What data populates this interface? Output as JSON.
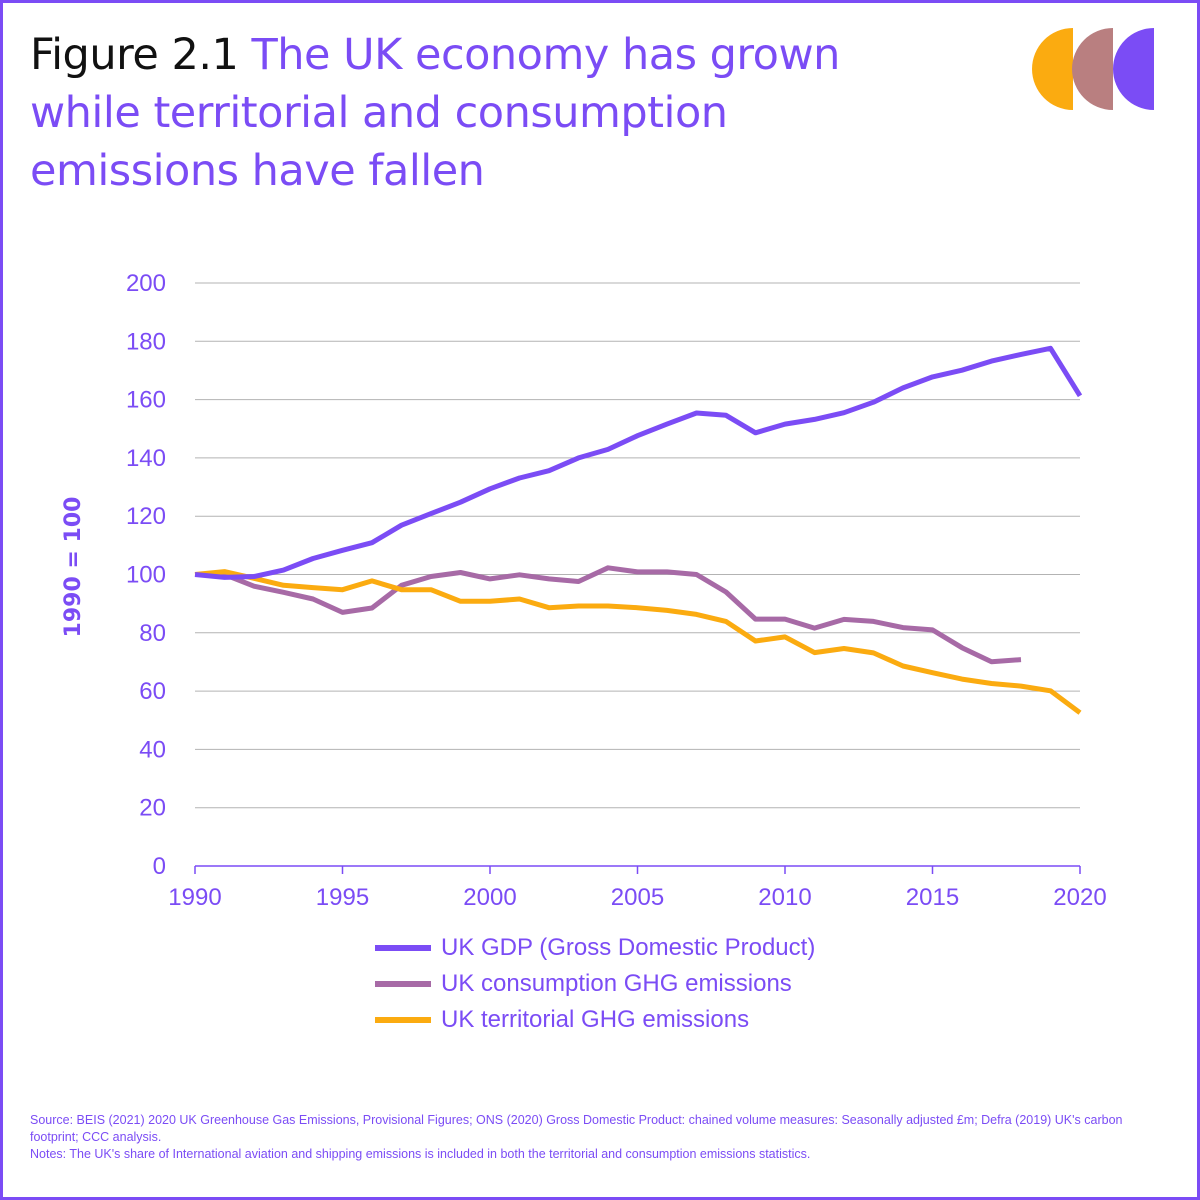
{
  "header": {
    "figure_label": "Figure 2.1",
    "title": "The UK economy has grown while territorial and consumption emissions have fallen"
  },
  "logo": {
    "colors": [
      "#fbab10",
      "#b97f80",
      "#7b4cf5"
    ]
  },
  "colors": {
    "accent": "#7b4cf5",
    "gdp": "#7b4cf5",
    "consumption": "#a76aa6",
    "territorial": "#fbab10",
    "grid": "#b3b3b3"
  },
  "chart_data": {
    "type": "line",
    "title": "The UK economy has grown while territorial and consumption emissions have fallen",
    "xlabel": "",
    "ylabel": "1990 = 100",
    "xlim": [
      1990,
      2020
    ],
    "ylim": [
      0,
      200
    ],
    "xticks": [
      1990,
      1995,
      2000,
      2005,
      2010,
      2015,
      2020
    ],
    "yticks": [
      0,
      20,
      40,
      60,
      80,
      100,
      120,
      140,
      160,
      180,
      200
    ],
    "grid": true,
    "legend_position": "bottom",
    "series": [
      {
        "name": "UK GDP (Gross Domestic Product)",
        "color": "#7b4cf5",
        "x": [
          1990,
          1991,
          1992,
          1993,
          1994,
          1995,
          1996,
          1997,
          1998,
          1999,
          2000,
          2001,
          2002,
          2003,
          2004,
          2005,
          2006,
          2007,
          2008,
          2009,
          2010,
          2011,
          2012,
          2013,
          2014,
          2015,
          2016,
          2017,
          2018,
          2019,
          2020
        ],
        "values": [
          100,
          99,
          99.3,
          101.5,
          105.5,
          108.3,
          110.9,
          116.9,
          120.9,
          124.8,
          129.4,
          133.1,
          135.6,
          140,
          142.9,
          147.6,
          151.6,
          155.4,
          154.6,
          148.6,
          151.6,
          153.2,
          155.5,
          159.1,
          164,
          167.8,
          170.1,
          173.2,
          175.5,
          177.6,
          161.3
        ]
      },
      {
        "name": "UK consumption GHG emissions",
        "color": "#a76aa6",
        "x": [
          1990,
          1991,
          1992,
          1993,
          1994,
          1995,
          1996,
          1997,
          1998,
          1999,
          2000,
          2001,
          2002,
          2003,
          2004,
          2005,
          2006,
          2007,
          2008,
          2009,
          2010,
          2011,
          2012,
          2013,
          2014,
          2015,
          2016,
          2017,
          2018
        ],
        "values": [
          100,
          100,
          96,
          93.9,
          91.6,
          87,
          88.5,
          96.3,
          99.3,
          100.7,
          98.5,
          99.9,
          98.5,
          97.6,
          102.3,
          100.9,
          100.9,
          100,
          94,
          84.7,
          84.7,
          81.6,
          84.6,
          83.9,
          81.8,
          81,
          74.9,
          70.1,
          70.8
        ]
      },
      {
        "name": "UK territorial GHG emissions",
        "color": "#fbab10",
        "x": [
          1990,
          1991,
          1992,
          1993,
          1994,
          1995,
          1996,
          1997,
          1998,
          1999,
          2000,
          2001,
          2002,
          2003,
          2004,
          2005,
          2006,
          2007,
          2008,
          2009,
          2010,
          2011,
          2012,
          2013,
          2014,
          2015,
          2016,
          2017,
          2018,
          2019,
          2020
        ],
        "values": [
          100,
          101,
          98.7,
          96.3,
          95.5,
          94.8,
          97.8,
          94.8,
          94.8,
          90.8,
          90.8,
          91.6,
          88.6,
          89.2,
          89.2,
          88.6,
          87.7,
          86.3,
          83.9,
          77.2,
          78.6,
          73.2,
          74.6,
          73.1,
          68.6,
          66.3,
          64.1,
          62.6,
          61.7,
          60.1,
          52.6
        ]
      }
    ]
  },
  "footnote": {
    "source_line": "Source: BEIS (2021) 2020 UK Greenhouse Gas Emissions, Provisional Figures; ONS (2020) Gross Domestic Product: chained volume measures: Seasonally adjusted £m; Defra (2019) UK's carbon footprint; CCC analysis.",
    "notes_line": "Notes: The UK's share of International aviation and shipping emissions is included in both the territorial and consumption emissions statistics."
  }
}
